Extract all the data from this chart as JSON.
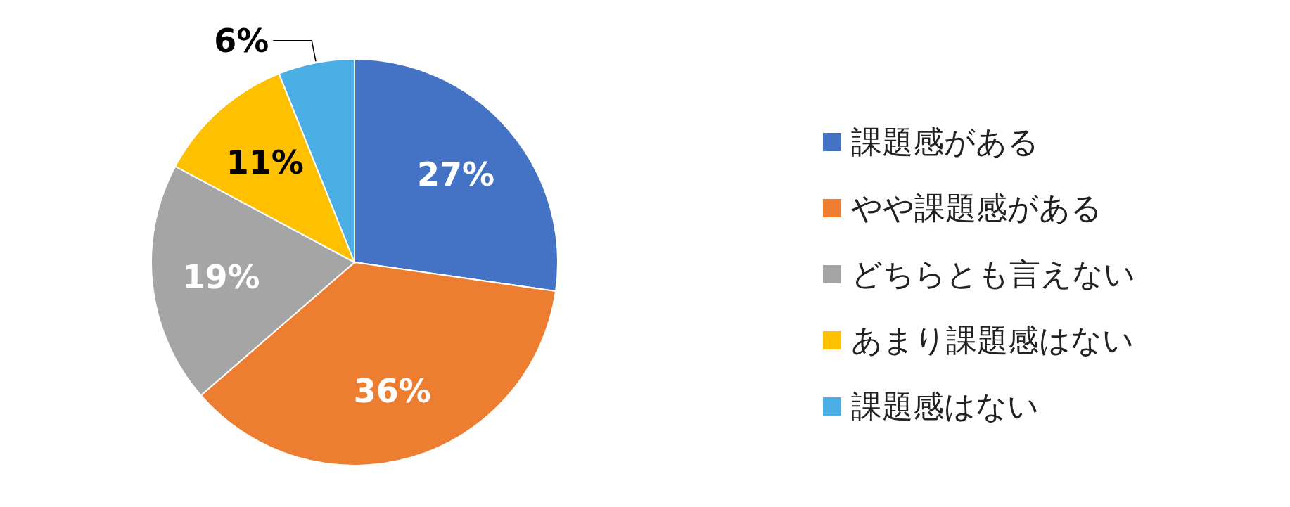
{
  "chart_data": {
    "type": "pie",
    "categories": [
      "課題感がある",
      "やや課題感がある",
      "どちらとも言えない",
      "あまり課題感はない",
      "課題感はない"
    ],
    "values": [
      27,
      36,
      19,
      11,
      6
    ],
    "colors": [
      "#4472c4",
      "#ed7d31",
      "#a5a5a5",
      "#ffc000",
      "#4baee4"
    ],
    "value_labels": [
      "27%",
      "36%",
      "19%",
      "11%",
      "6%"
    ],
    "legend": "right"
  }
}
